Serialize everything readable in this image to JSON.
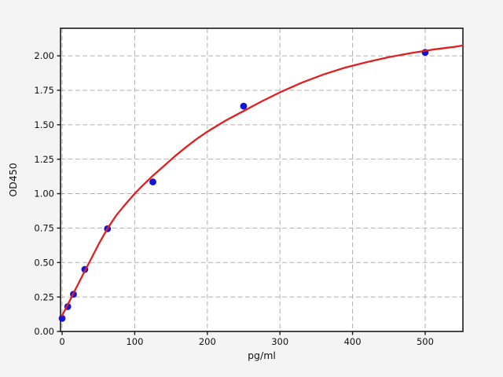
{
  "figure": {
    "background": "#f4f4f4"
  },
  "chart_data": {
    "type": "scatter",
    "title": "",
    "xlabel": "pg/ml",
    "ylabel": "OD450",
    "xlim": [
      -2.2,
      552
    ],
    "ylim": [
      0,
      2.2
    ],
    "grid": true,
    "grid_style": "dashed",
    "legend": "none",
    "x_ticks": [
      0,
      100,
      200,
      300,
      400,
      500
    ],
    "x_tick_labels": [
      "0",
      "100",
      "200",
      "300",
      "400",
      "500"
    ],
    "y_ticks": [
      0,
      0.25,
      0.5,
      0.75,
      1.0,
      1.25,
      1.5,
      1.75,
      2.0
    ],
    "y_tick_labels": [
      "0.00",
      "0.25",
      "0.50",
      "0.75",
      "1.00",
      "1.25",
      "1.50",
      "1.75",
      "2.00"
    ],
    "series": [
      {
        "name": "standard-points",
        "kind": "scatter",
        "marker": "circle",
        "color": "#1414d4",
        "points": [
          [
            0,
            0.095
          ],
          [
            7.8,
            0.18
          ],
          [
            15.6,
            0.27
          ],
          [
            31.25,
            0.45
          ],
          [
            62.5,
            0.745
          ],
          [
            125,
            1.085
          ],
          [
            250,
            1.635
          ],
          [
            500,
            2.025
          ]
        ]
      },
      {
        "name": "fit-curve",
        "kind": "line",
        "color": "#e02020",
        "points": [
          [
            0,
            0.115
          ],
          [
            10,
            0.218
          ],
          [
            20,
            0.322
          ],
          [
            30,
            0.425
          ],
          [
            40,
            0.527
          ],
          [
            50,
            0.63
          ],
          [
            62.5,
            0.748
          ],
          [
            75,
            0.845
          ],
          [
            87.5,
            0.925
          ],
          [
            100,
            1.0
          ],
          [
            110,
            1.055
          ],
          [
            125,
            1.13
          ],
          [
            140,
            1.2
          ],
          [
            155,
            1.27
          ],
          [
            170,
            1.335
          ],
          [
            185,
            1.395
          ],
          [
            200,
            1.45
          ],
          [
            225,
            1.53
          ],
          [
            250,
            1.6
          ],
          [
            275,
            1.67
          ],
          [
            300,
            1.735
          ],
          [
            330,
            1.805
          ],
          [
            360,
            1.865
          ],
          [
            390,
            1.915
          ],
          [
            420,
            1.955
          ],
          [
            450,
            1.99
          ],
          [
            480,
            2.02
          ],
          [
            510,
            2.045
          ],
          [
            540,
            2.065
          ],
          [
            552,
            2.075
          ]
        ]
      }
    ],
    "colors": {
      "plot_bg": "#ffffff",
      "grid": "#b0b0b0",
      "spine": "#1a1a1a",
      "tick": "#1a1a1a",
      "text": "#111111"
    }
  }
}
